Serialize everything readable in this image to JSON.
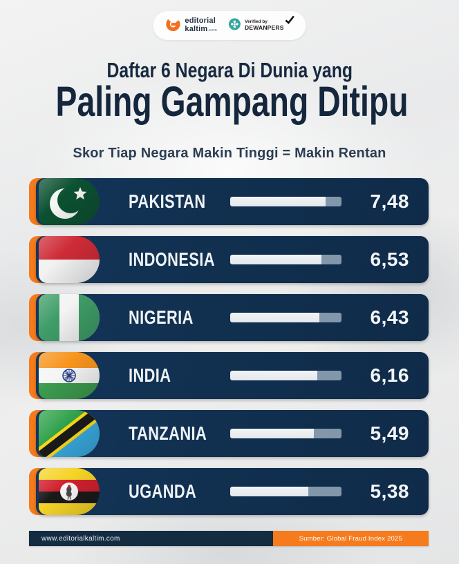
{
  "header": {
    "brand": {
      "name_top": "editorial",
      "name_bottom": "kaltim",
      "name_suffix": ".com"
    },
    "verified": {
      "label_top": "Verified by",
      "label_bottom": "DEWANPERS"
    },
    "title_line1": "Daftar 6 Negara Di Dunia yang",
    "title_line2": "Paling Gampang Ditipu",
    "subtitle": "Skor Tiap Negara Makin Tinggi = Makin Rentan"
  },
  "rows": [
    {
      "country": "PAKISTAN",
      "score_display": "7,48",
      "score": 7.48,
      "bar_percent": 86,
      "flag": "pakistan"
    },
    {
      "country": "INDONESIA",
      "score_display": "6,53",
      "score": 6.53,
      "bar_percent": 82,
      "flag": "indonesia"
    },
    {
      "country": "NIGERIA",
      "score_display": "6,43",
      "score": 6.43,
      "bar_percent": 80,
      "flag": "nigeria"
    },
    {
      "country": "INDIA",
      "score_display": "6,16",
      "score": 6.16,
      "bar_percent": 78,
      "flag": "india"
    },
    {
      "country": "TANZANIA",
      "score_display": "5,49",
      "score": 5.49,
      "bar_percent": 75,
      "flag": "tanzania"
    },
    {
      "country": "UGANDA",
      "score_display": "5,38",
      "score": 5.38,
      "bar_percent": 70,
      "flag": "uganda"
    }
  ],
  "footer": {
    "website": "www.editorialkaltim.com",
    "source": "Sumber: Global Fraud Index 2025"
  },
  "colors": {
    "accent_orange": "#f57b1d",
    "card_navy": "#11304f",
    "bar_fill": "#eaedef",
    "bar_track": "#8397ab",
    "title_navy": "#16293f",
    "footer_navy": "#132c42",
    "badge_teal": "#35a79c",
    "brand_orange": "#f26f21"
  },
  "chart_data": {
    "type": "bar",
    "orientation": "horizontal",
    "title": "Daftar 6 Negara Di Dunia yang Paling Gampang Ditipu",
    "subtitle": "Skor Tiap Negara Makin Tinggi = Makin Rentan",
    "categories": [
      "Pakistan",
      "Indonesia",
      "Nigeria",
      "India",
      "Tanzania",
      "Uganda"
    ],
    "values": [
      7.48,
      6.53,
      6.43,
      6.16,
      5.49,
      5.38
    ],
    "value_labels": [
      "7,48",
      "6,53",
      "6,43",
      "6,16",
      "5,49",
      "5,38"
    ],
    "bar_fill_percent": [
      86,
      82,
      80,
      78,
      75,
      70
    ],
    "legend": [],
    "grid": false,
    "source": "Sumber: Global Fraud Index 2025"
  }
}
